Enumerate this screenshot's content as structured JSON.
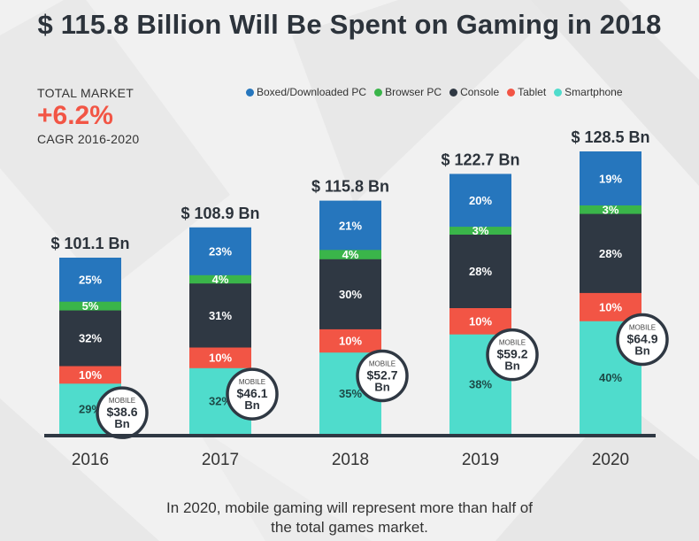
{
  "title": "$ 115.8 Billion Will Be Spent on Gaming in 2018",
  "kpi": {
    "label": "TOTAL MARKET",
    "value": "+6.2%",
    "sublabel": "CAGR 2016-2020",
    "value_color": "#f25545"
  },
  "footer": {
    "line1": "In 2020, mobile gaming will represent more than half of",
    "line2": "the total games market."
  },
  "chart_data": {
    "type": "bar",
    "stacked": true,
    "title": "$ 115.8 Billion Will Be Spent on Gaming in 2018",
    "xlabel": "",
    "ylabel": "",
    "categories": [
      "2016",
      "2017",
      "2018",
      "2019",
      "2020"
    ],
    "totals": [
      101.1,
      108.9,
      115.8,
      122.7,
      128.5
    ],
    "total_labels": [
      "$ 101.1 Bn",
      "$ 108.9 Bn",
      "$ 115.8 Bn",
      "$ 122.7 Bn",
      "$ 128.5 Bn"
    ],
    "units": "% share of total market",
    "series": [
      {
        "name": "Smartphone",
        "color": "#4fdccc",
        "label_color": "#1d4a47",
        "values": [
          29,
          32,
          35,
          38,
          40
        ]
      },
      {
        "name": "Tablet",
        "color": "#f25545",
        "label_color": "#ffffff",
        "values": [
          10,
          10,
          10,
          10,
          10
        ]
      },
      {
        "name": "Console",
        "color": "#2f3843",
        "label_color": "#ffffff",
        "values": [
          32,
          31,
          30,
          28,
          28
        ]
      },
      {
        "name": "Browser PC",
        "color": "#3ab54a",
        "label_color": "#ffffff",
        "values": [
          5,
          4,
          4,
          3,
          3
        ]
      },
      {
        "name": "Boxed/Downloaded PC",
        "color": "#2676bd",
        "label_color": "#ffffff",
        "values": [
          25,
          23,
          21,
          20,
          19
        ]
      }
    ],
    "legend_order": [
      "Boxed/Downloaded PC",
      "Browser PC",
      "Console",
      "Tablet",
      "Smartphone"
    ],
    "legend_position": "top-right",
    "mobile_callouts": {
      "label": "MOBILE",
      "values": [
        "$38.6",
        "$46.1",
        "$52.7",
        "$59.2",
        "$64.9"
      ],
      "unit": "Bn"
    },
    "ylim": [
      0,
      135
    ],
    "grid": false
  }
}
